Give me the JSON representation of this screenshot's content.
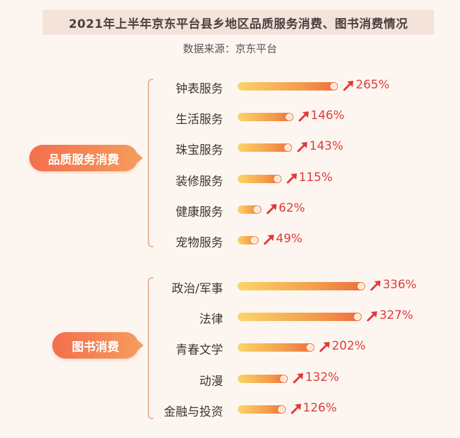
{
  "title": "2021年上半年京东平台县乡地区品质服务消费、图书消费情况",
  "source": "数据来源：京东平台",
  "colors": {
    "accent": "#f46f4e",
    "value": "#e2383a",
    "bar_start": "#fbd568",
    "bar_end": "#ef6a3e"
  },
  "chart_data": [
    {
      "type": "bar",
      "group": "品质服务消费",
      "categories": [
        "钟表服务",
        "生活服务",
        "珠宝服务",
        "装修服务",
        "健康服务",
        "宠物服务"
      ],
      "values": [
        265,
        146,
        143,
        115,
        62,
        49
      ],
      "labels": [
        "265%",
        "146%",
        "143%",
        "115%",
        "62%",
        "49%"
      ]
    },
    {
      "type": "bar",
      "group": "图书消费",
      "categories": [
        "政治/军事",
        "法律",
        "青春文学",
        "动漫",
        "金融与投资"
      ],
      "values": [
        336,
        327,
        202,
        132,
        126
      ],
      "labels": [
        "336%",
        "327%",
        "202%",
        "132%",
        "126%"
      ]
    }
  ]
}
